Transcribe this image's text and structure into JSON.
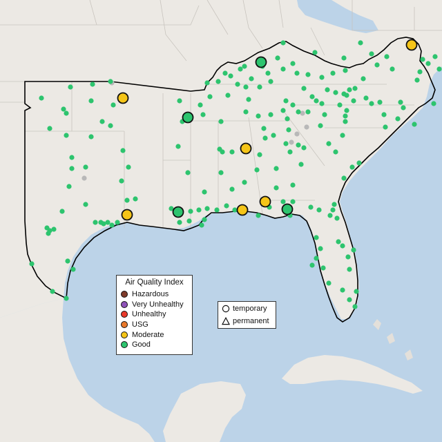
{
  "legend": {
    "title": "Air Quality Index",
    "categories": [
      {
        "label": "Hazardous",
        "color": "#7e3a2a"
      },
      {
        "label": "Very Unhealthy",
        "color": "#8e52b8"
      },
      {
        "label": "Unhealthy",
        "color": "#e8392b"
      },
      {
        "label": "USG",
        "color": "#e8782b"
      },
      {
        "label": "Moderate",
        "color": "#f5c518"
      },
      {
        "label": "Good",
        "color": "#2dc46e"
      }
    ]
  },
  "shape_legend": {
    "temporary": "temporary",
    "permanent": "permanent"
  },
  "colors": {
    "ocean": "#bcd3e8",
    "land": "#ece9e4",
    "good": "#2dc46e",
    "moderate": "#f5c518",
    "no_data": "#b8b8b8",
    "region_border": "#000000"
  }
}
